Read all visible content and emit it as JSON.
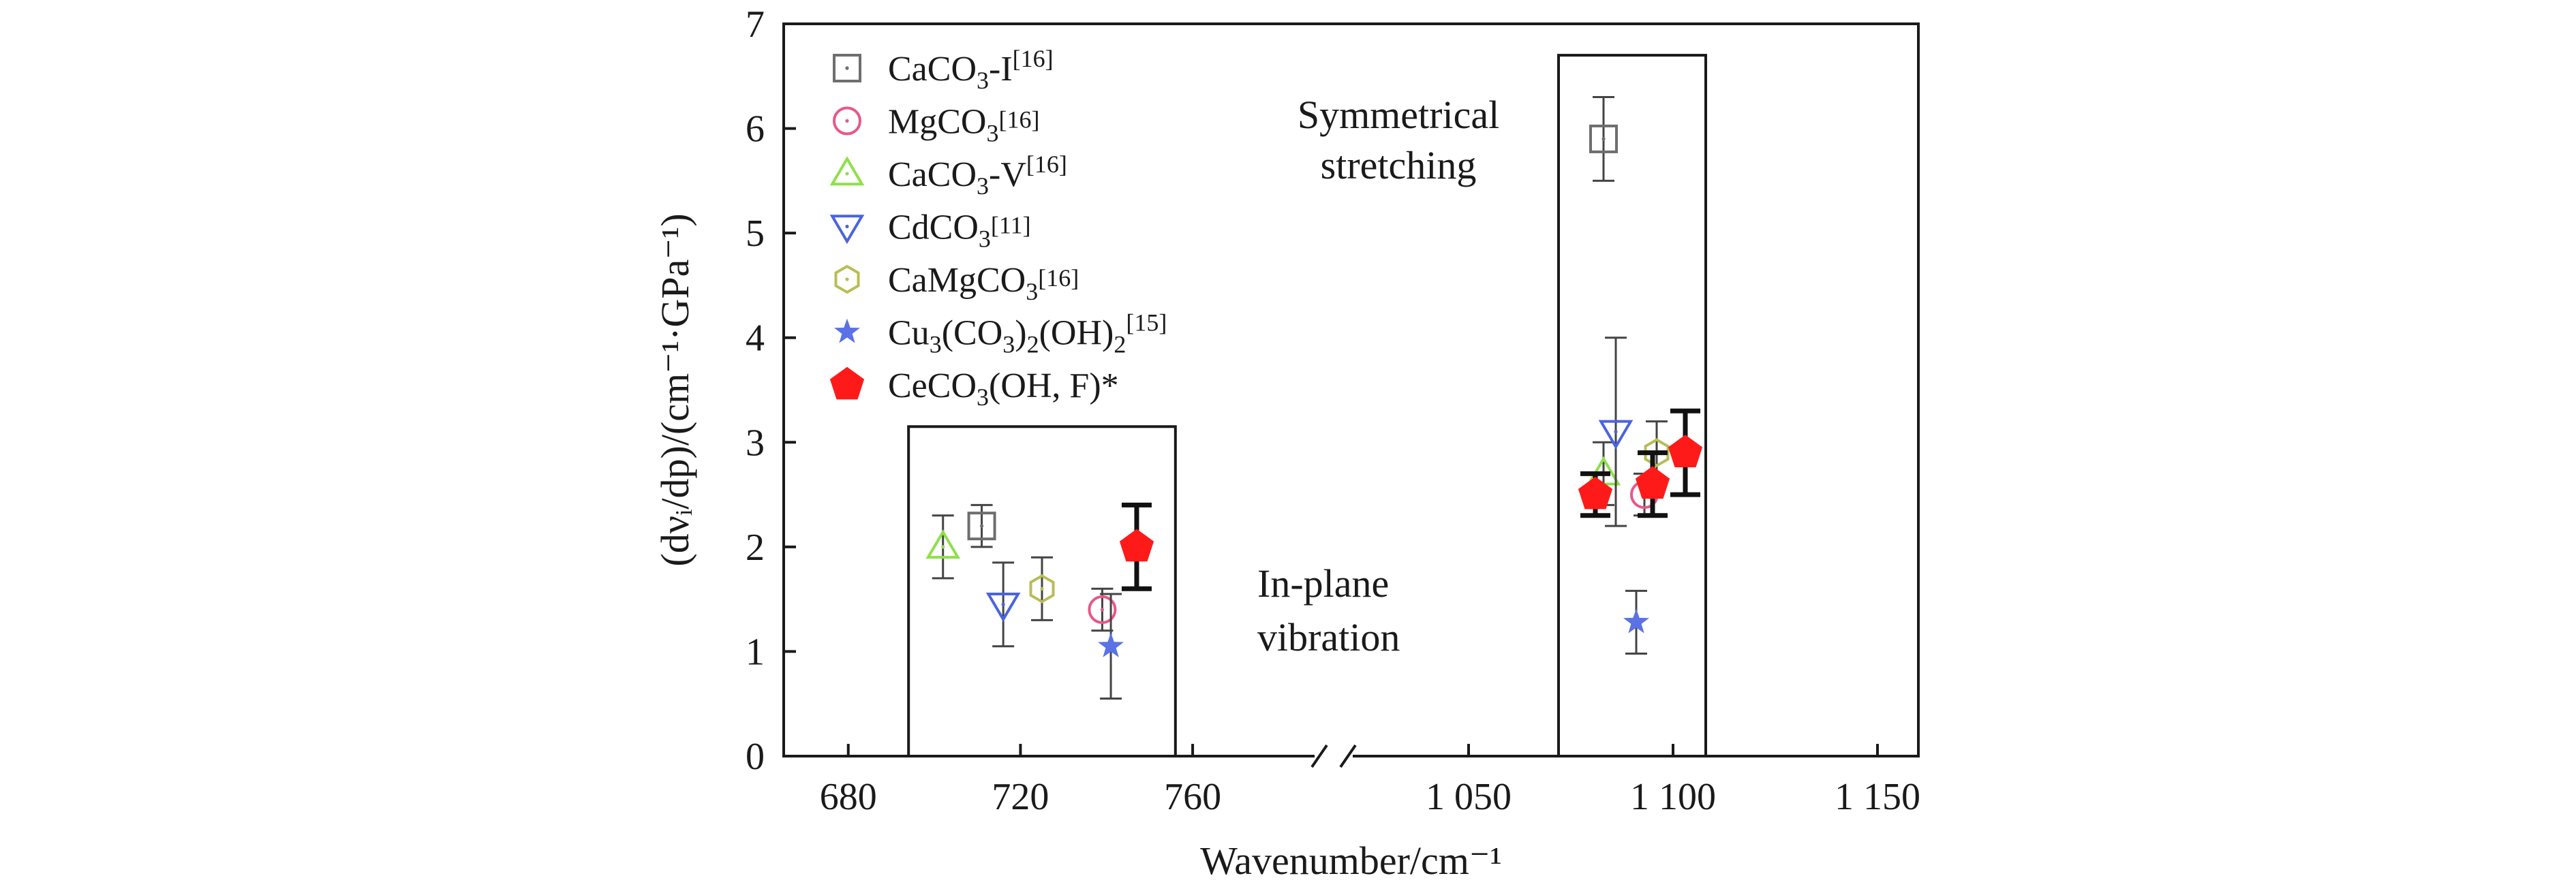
{
  "chart_data": {
    "type": "scatter",
    "xlabel": "Wavenumber/cm⁻¹",
    "ylabel": "(dνᵢ/dp)/(cm⁻¹·GPa⁻¹)",
    "ylim": [
      0,
      7
    ],
    "y_ticks": [
      "0",
      "1",
      "2",
      "3",
      "4",
      "5",
      "6",
      "7"
    ],
    "x_axis_break": true,
    "x_segments": [
      {
        "xlim": [
          665,
          785
        ],
        "ticks": [
          680,
          720,
          760
        ],
        "tick_labels": [
          "680",
          "720",
          "760"
        ]
      },
      {
        "xlim": [
          1025,
          1160
        ],
        "ticks": [
          1050,
          1100,
          1150
        ],
        "tick_labels": [
          "1 050",
          "1 100",
          "1 150"
        ]
      }
    ],
    "legend_position": "top-left",
    "annotations": [
      {
        "text": "In-plane",
        "box_x": [
          694,
          756
        ],
        "box_y": [
          0,
          3.15
        ]
      },
      {
        "text": "vibration"
      },
      {
        "text": "Symmetrical",
        "box_x": [
          1072,
          1108
        ],
        "box_y": [
          0,
          6.7
        ]
      },
      {
        "text": "stretching"
      }
    ],
    "series": [
      {
        "name": "CaCO3-I[16]",
        "formula": "CaCO",
        "sub": "3",
        "suffix": "-I",
        "ref": "[16]",
        "marker": "square",
        "color": "#6e6e6e",
        "points": [
          {
            "x": 711,
            "y": 2.2,
            "err": 0.2
          },
          {
            "x": 1083,
            "y": 5.9,
            "err": 0.4
          }
        ]
      },
      {
        "name": "MgCO3[16]",
        "formula": "MgCO",
        "sub": "3",
        "suffix": "",
        "ref": "[16]",
        "marker": "circle",
        "color": "#e8578a",
        "points": [
          {
            "x": 739,
            "y": 1.4,
            "err": 0.2
          },
          {
            "x": 1093,
            "y": 2.5,
            "err": 0.2
          }
        ]
      },
      {
        "name": "CaCO3-V[16]",
        "formula": "CaCO",
        "sub": "3",
        "suffix": "-V",
        "ref": "[16]",
        "marker": "triangle-up",
        "color": "#8ee04a",
        "points": [
          {
            "x": 702,
            "y": 2.0,
            "err": 0.3
          },
          {
            "x": 1083,
            "y": 2.7,
            "err": 0.3
          }
        ]
      },
      {
        "name": "CdCO3[11]",
        "formula": "CdCO",
        "sub": "3",
        "suffix": "",
        "ref": "[11]",
        "marker": "triangle-down",
        "color": "#4a64e0",
        "points": [
          {
            "x": 716,
            "y": 1.45,
            "err": 0.4
          },
          {
            "x": 1086,
            "y": 3.1,
            "err": 0.9
          }
        ]
      },
      {
        "name": "CaMgCO3[16]",
        "formula": "CaMgCO",
        "sub": "3",
        "suffix": "",
        "ref": "[16]",
        "marker": "hexagon",
        "color": "#b8bd55",
        "points": [
          {
            "x": 725,
            "y": 1.6,
            "err": 0.3
          },
          {
            "x": 1096,
            "y": 2.9,
            "err": 0.3
          }
        ]
      },
      {
        "name": "Cu3(CO3)2(OH)2[15]",
        "formula_html": "Cu₃(CO₃)₂(OH)₂",
        "ref": "[15]",
        "marker": "star",
        "color": "#5a72e6",
        "points": [
          {
            "x": 741,
            "y": 1.05,
            "err": 0.5
          },
          {
            "x": 1091,
            "y": 1.28,
            "err": 0.3
          }
        ]
      },
      {
        "name": "CeCO3(OH, F)*",
        "formula": "CeCO",
        "sub": "3",
        "suffix": "(OH, F)*",
        "ref": "",
        "marker": "pentagon",
        "color": "#ff1a1a",
        "filled": true,
        "points": [
          {
            "x": 747,
            "y": 2.0,
            "err": 0.4
          },
          {
            "x": 1081,
            "y": 2.5,
            "err": 0.2
          },
          {
            "x": 1095,
            "y": 2.6,
            "err": 0.3
          },
          {
            "x": 1103,
            "y": 2.9,
            "err": 0.4
          }
        ]
      }
    ]
  }
}
